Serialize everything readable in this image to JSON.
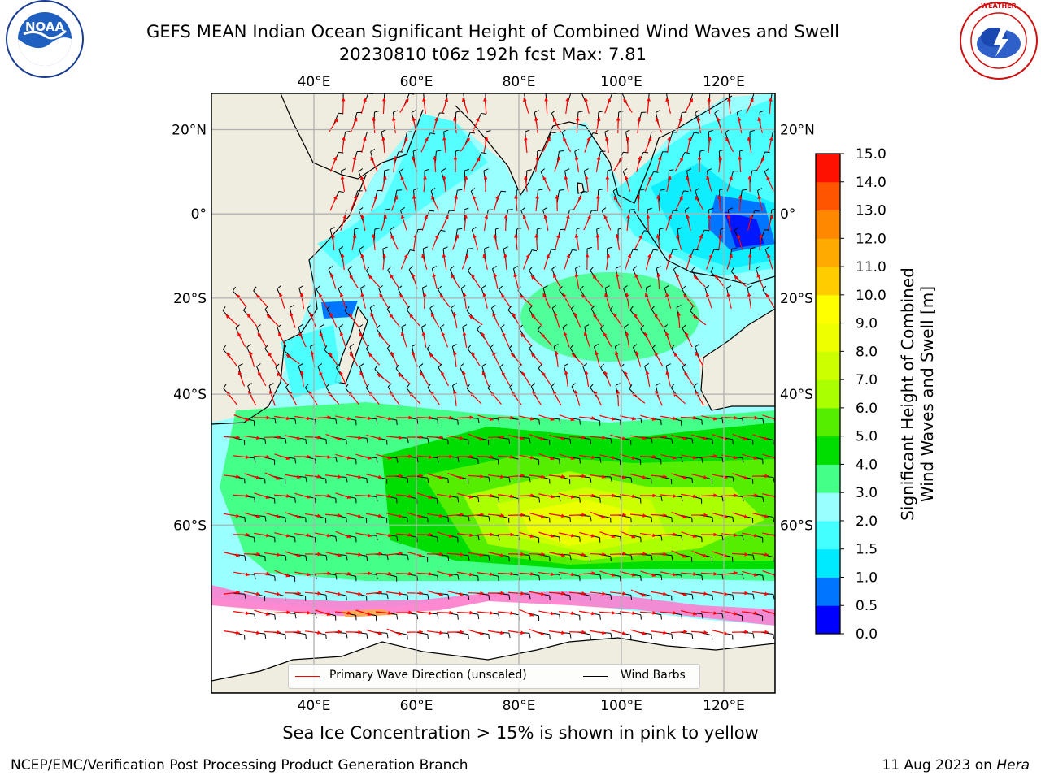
{
  "title": {
    "line1": "GEFS MEAN Indian Ocean Significant Height of Combined Wind Waves and Swell",
    "line2": "20230810 t06z 192h fcst   Max: 7.81"
  },
  "logos": {
    "left": {
      "name": "NOAA",
      "ring_text": "NATIONAL OCEANIC AND ATMOSPHERIC ADMINISTRATION • U.S. DEPARTMENT OF COMMERCE"
    },
    "right": {
      "name": "National Weather Service",
      "ring_text": "NATIONAL WEATHER SERVICE"
    }
  },
  "map": {
    "lon_ticks": [
      "40°E",
      "60°E",
      "80°E",
      "100°E",
      "120°E"
    ],
    "lat_ticks": [
      "20°N",
      "0°",
      "20°S",
      "40°S",
      "60°S"
    ],
    "lon_values": [
      40,
      60,
      80,
      100,
      120
    ],
    "lat_values": [
      20,
      0,
      -20,
      -40,
      -60
    ],
    "lon_range": [
      20,
      130
    ],
    "lat_range": [
      -75,
      28
    ],
    "colors": {
      "land": "#efede0",
      "background_sea": "#99ffff",
      "wave_direction": "#ff0000",
      "wind_barbs": "#000000",
      "grid": "#b0b0b0"
    }
  },
  "legend": {
    "items": [
      {
        "label": "Primary Wave Direction (unscaled)",
        "color": "#ff0000"
      },
      {
        "label": "Wind Barbs",
        "color": "#000000"
      }
    ]
  },
  "colorbar": {
    "title_line1": "Significant Height of Combined",
    "title_line2": "Wind Waves and Swell [m]",
    "ticks": [
      "0.0",
      "0.5",
      "1.0",
      "1.5",
      "2.0",
      "3.0",
      "4.0",
      "5.0",
      "6.0",
      "7.0",
      "8.0",
      "9.0",
      "10.0",
      "11.0",
      "12.0",
      "13.0",
      "14.0",
      "15.0"
    ],
    "colors": [
      "#0000ff",
      "#0075ff",
      "#00eaff",
      "#44ffff",
      "#99ffff",
      "#44ff88",
      "#00dd00",
      "#55ee00",
      "#aaff00",
      "#ccff00",
      "#eeff00",
      "#ffff00",
      "#ffcc00",
      "#ffaa00",
      "#ff8800",
      "#ff5500",
      "#ff1100"
    ]
  },
  "footer": {
    "note": "Sea Ice Concentration > 15% is shown in pink to yellow",
    "left": "NCEP/EMC/Verification Post Processing Product Generation Branch",
    "right_date": "11 Aug 2023 on ",
    "right_host": "Hera"
  }
}
